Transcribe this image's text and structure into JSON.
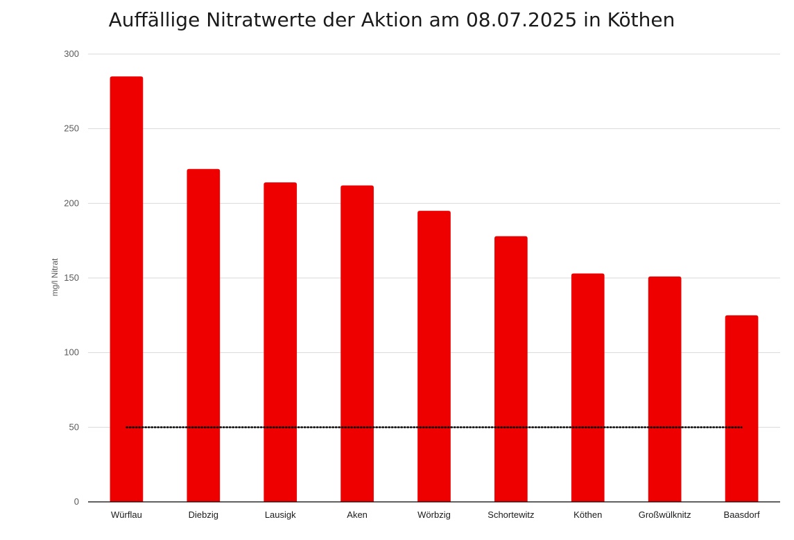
{
  "chart_data": {
    "type": "bar",
    "title": "Auffällige Nitratwerte der Aktion am 08.07.2025  in Köthen",
    "ylabel": "mg/l Nitrat",
    "xlabel": "",
    "categories": [
      "Würflau",
      "Diebzig",
      "Lausigk",
      "Aken",
      "Wörbzig",
      "Schortewitz",
      "Köthen",
      "Großwülknitz",
      "Baasdorf"
    ],
    "values": [
      285,
      223,
      214,
      212,
      195,
      178,
      153,
      151,
      125
    ],
    "ylim": [
      0,
      300
    ],
    "yticks": [
      0,
      50,
      100,
      150,
      200,
      250,
      300
    ],
    "reference_line": {
      "value": 50,
      "style": "dotted"
    },
    "grid": true,
    "legend": "none",
    "colors": {
      "bar": "#ee0000",
      "grid": "#d9d9d9",
      "reference_line": "#000000",
      "axis": "#000000"
    }
  }
}
